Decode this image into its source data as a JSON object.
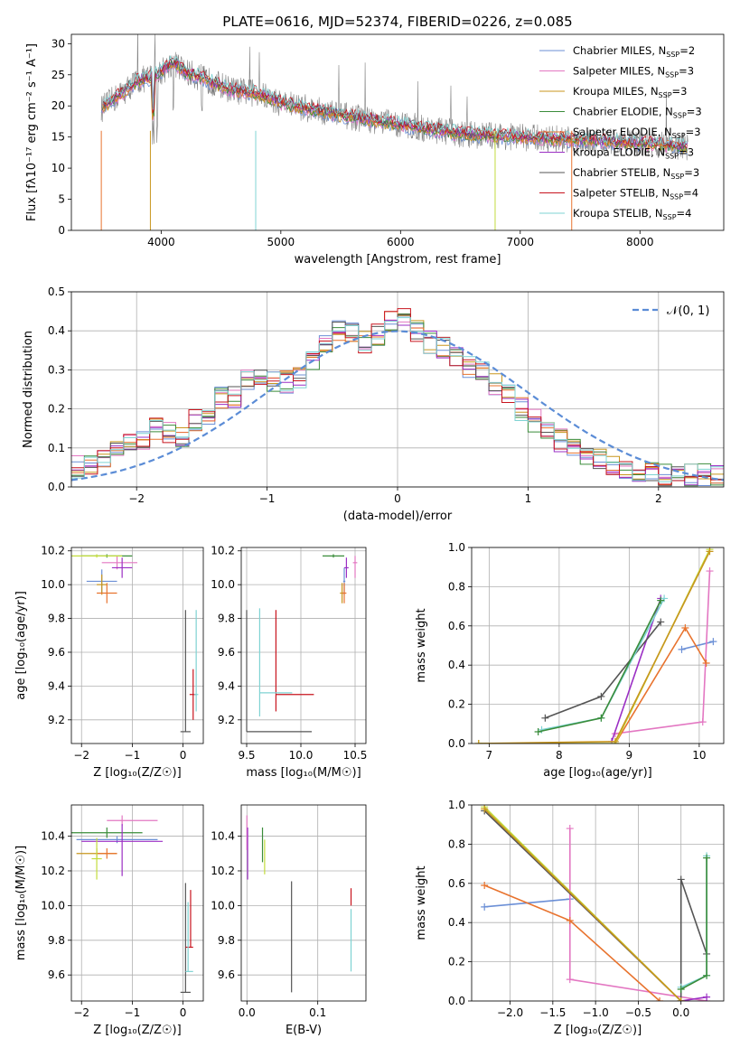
{
  "figure": {
    "title": "PLATE=0616, MJD=52374, FIBERID=0226, z=0.085",
    "models": [
      {
        "name": "Chabrier MILES",
        "nssp": "2",
        "color": "#6b8fd6"
      },
      {
        "name": "Salpeter MILES",
        "nssp": "3",
        "color": "#e377c2"
      },
      {
        "name": "Kroupa MILES",
        "nssp": "3",
        "color": "#c8961e"
      },
      {
        "name": "Chabrier ELODIE",
        "nssp": "3",
        "color": "#3a8c3a"
      },
      {
        "name": "Salpeter ELODIE",
        "nssp": "3",
        "color": "#e8732e"
      },
      {
        "name": "Kroupa ELODIE",
        "nssp": "3",
        "color": "#9b2fc4"
      },
      {
        "name": "Chabrier STELIB",
        "nssp": "3",
        "color": "#555555"
      },
      {
        "name": "Salpeter STELIB",
        "nssp": "4",
        "color": "#c8141e"
      },
      {
        "name": "Kroupa STELIB",
        "nssp": "4",
        "color": "#7fd3d3"
      }
    ],
    "extra_colors": {
      "data": "#808080",
      "yellowgreen": "#c2dc3c",
      "normal": "#5b8cd6"
    }
  },
  "chart_data": [
    {
      "type": "line",
      "id": "spectrum",
      "title": "PLATE=0616, MJD=52374, FIBERID=0226, z=0.085",
      "xlabel": "wavelength [Angstrom, rest frame]",
      "ylabel": "Flux [fλ10⁻¹⁷ erg cm⁻² s⁻¹ A⁻¹]",
      "xlim": [
        3250,
        8700
      ],
      "ylim": [
        0,
        31.5
      ],
      "xticks": [
        4000,
        5000,
        6000,
        7000,
        8000
      ],
      "yticks": [
        0,
        5,
        10,
        15,
        20,
        25,
        30
      ],
      "legend": "top-right",
      "continuum": {
        "x": [
          3500,
          3600,
          3700,
          3800,
          3900,
          4000,
          4100,
          4200,
          4400,
          4600,
          4800,
          5000,
          5500,
          6000,
          6500,
          7000,
          7500,
          8000,
          8400
        ],
        "y": [
          19.5,
          21.0,
          22.5,
          24.0,
          24.5,
          25.5,
          27.0,
          25.5,
          24.0,
          22.5,
          22.0,
          20.5,
          18.5,
          17.0,
          15.5,
          15.0,
          14.5,
          14.0,
          13.5
        ]
      },
      "notes": [
        "data spectrum (grey) with nine model fits overplotted"
      ]
    },
    {
      "type": "bar",
      "id": "residual_histogram",
      "xlabel": "(data-model)/error",
      "ylabel": "Normed distribution",
      "xlim": [
        -2.5,
        2.5
      ],
      "ylim": [
        0,
        0.5
      ],
      "xticks": [
        -2,
        -1,
        0,
        1,
        2
      ],
      "yticks": [
        0.0,
        0.1,
        0.2,
        0.3,
        0.4,
        0.5
      ],
      "legend": "top-right",
      "legend_label": "𝒩(0, 1)",
      "bin_width": 0.1,
      "histogram_values": [
        0.05,
        0.05,
        0.07,
        0.09,
        0.11,
        0.12,
        0.15,
        0.14,
        0.13,
        0.17,
        0.19,
        0.23,
        0.23,
        0.27,
        0.29,
        0.27,
        0.27,
        0.28,
        0.32,
        0.36,
        0.4,
        0.39,
        0.37,
        0.39,
        0.42,
        0.44,
        0.4,
        0.37,
        0.36,
        0.33,
        0.31,
        0.29,
        0.26,
        0.24,
        0.2,
        0.17,
        0.14,
        0.12,
        0.1,
        0.08,
        0.07,
        0.06,
        0.05,
        0.04,
        0.04,
        0.03,
        0.03,
        0.03,
        0.03,
        0.03
      ],
      "normal_curve": "N(0,1) pdf"
    },
    {
      "type": "scatter",
      "id": "age_vs_Z",
      "xlabel": "Z [log₁₀(Z/Z☉)]",
      "ylabel": "age  [log₁₀(age/yr)]",
      "xlim": [
        -2.2,
        0.4
      ],
      "ylim": [
        9.06,
        10.22
      ],
      "xticks": [
        -2,
        -1,
        0
      ],
      "yticks": [
        9.2,
        9.4,
        9.6,
        9.8,
        10.0,
        10.2
      ],
      "points": [
        {
          "model": 0,
          "x": -1.6,
          "y": 10.02,
          "xerr": [
            0.3,
            0.3
          ],
          "yerr": [
            0.07,
            0.07
          ]
        },
        {
          "model": 1,
          "x": -1.3,
          "y": 10.13,
          "xerr": [
            0.3,
            0.4
          ],
          "yerr": [
            0.04,
            0.04
          ]
        },
        {
          "model": 2,
          "x": -1.6,
          "y": 10.0,
          "xerr": [
            0.1,
            0.1
          ],
          "yerr": [
            0.06,
            0.06
          ]
        },
        {
          "model": 3,
          "x": -1.5,
          "y": 10.17,
          "xerr": [
            0.5,
            0.5
          ],
          "yerr": [
            0.01,
            0.01
          ]
        },
        {
          "model": 4,
          "x": -1.5,
          "y": 9.95,
          "xerr": [
            0.2,
            0.2
          ],
          "yerr": [
            0.06,
            0.06
          ]
        },
        {
          "model": 5,
          "x": -1.2,
          "y": 10.1,
          "xerr": [
            0.2,
            0.2
          ],
          "yerr": [
            0.06,
            0.06
          ]
        },
        {
          "model": 6,
          "x": 0.05,
          "y": 9.13,
          "xerr": [
            0.1,
            0.1
          ],
          "yerr": [
            0.0,
            0.72
          ]
        },
        {
          "model": 7,
          "x": 0.2,
          "y": 9.35,
          "xerr": [
            0.07,
            0.07
          ],
          "yerr": [
            0.15,
            0.15
          ]
        },
        {
          "model": 8,
          "x": 0.26,
          "y": 9.35,
          "xerr": [
            0.04,
            0.04
          ],
          "yerr": [
            0.1,
            0.5
          ]
        },
        {
          "model": -1,
          "x": -1.7,
          "y": 10.17,
          "xerr": [
            0.5,
            0.5
          ],
          "yerr": [
            0.01,
            0.01
          ]
        }
      ]
    },
    {
      "type": "scatter",
      "id": "age_vs_mass",
      "xlabel": "mass [log₁₀(M/M☉)]",
      "ylabel": "",
      "xlim": [
        9.45,
        10.6
      ],
      "ylim": [
        9.06,
        10.22
      ],
      "xticks": [
        9.5,
        10.0,
        10.5
      ],
      "yticks": [
        9.2,
        9.4,
        9.6,
        9.8,
        10.0,
        10.2
      ],
      "points": [
        {
          "model": 0,
          "x": 10.4,
          "y": 10.02,
          "xerr": [
            0.01,
            0.01
          ],
          "yerr": [
            0.08,
            0.08
          ]
        },
        {
          "model": 1,
          "x": 10.5,
          "y": 10.13,
          "xerr": [
            0.02,
            0.02
          ],
          "yerr": [
            0.09,
            0.04
          ]
        },
        {
          "model": 2,
          "x": 10.38,
          "y": 9.95,
          "xerr": [
            0.02,
            0.02
          ],
          "yerr": [
            0.06,
            0.06
          ]
        },
        {
          "model": 3,
          "x": 10.3,
          "y": 10.17,
          "xerr": [
            0.1,
            0.1
          ],
          "yerr": [
            0.01,
            0.01
          ]
        },
        {
          "model": 4,
          "x": 10.4,
          "y": 9.95,
          "xerr": [
            0.02,
            0.02
          ],
          "yerr": [
            0.06,
            0.06
          ]
        },
        {
          "model": 5,
          "x": 10.42,
          "y": 10.1,
          "xerr": [
            0.02,
            0.02
          ],
          "yerr": [
            0.06,
            0.06
          ]
        },
        {
          "model": 6,
          "x": 9.5,
          "y": 9.13,
          "xerr": [
            0.0,
            0.6
          ],
          "yerr": [
            0.0,
            0.72
          ]
        },
        {
          "model": 7,
          "x": 9.77,
          "y": 9.35,
          "xerr": [
            0.0,
            0.35
          ],
          "yerr": [
            0.1,
            0.5
          ]
        },
        {
          "model": 8,
          "x": 9.62,
          "y": 9.36,
          "xerr": [
            0.0,
            0.3
          ],
          "yerr": [
            0.14,
            0.5
          ]
        }
      ]
    },
    {
      "type": "line",
      "id": "mass_weight_vs_age",
      "xlabel": "age  [log₁₀(age/yr)]",
      "ylabel": "mass weight",
      "xlim": [
        6.75,
        10.35
      ],
      "ylim": [
        0,
        1
      ],
      "xticks": [
        7,
        8,
        9,
        10
      ],
      "yticks": [
        0.0,
        0.2,
        0.4,
        0.6,
        0.8,
        1.0
      ],
      "series": [
        {
          "model": 0,
          "x": [
            9.75,
            10.2
          ],
          "y": [
            0.48,
            0.52
          ]
        },
        {
          "model": 1,
          "x": [
            8.8,
            10.05,
            10.15
          ],
          "y": [
            0.05,
            0.11,
            0.88
          ]
        },
        {
          "model": 4,
          "x": [
            8.8,
            9.8,
            10.1
          ],
          "y": [
            0.0,
            0.59,
            0.41
          ]
        },
        {
          "model": 5,
          "x": [
            8.75,
            9.45
          ],
          "y": [
            0.01,
            0.74
          ]
        },
        {
          "model": 6,
          "x": [
            7.8,
            8.6,
            9.45
          ],
          "y": [
            0.13,
            0.24,
            0.62
          ]
        },
        {
          "model": 8,
          "x": [
            7.75,
            8.6,
            9.5
          ],
          "y": [
            0.07,
            0.13,
            0.74
          ]
        },
        {
          "model": 3,
          "x": [
            7.7,
            8.6,
            9.45
          ],
          "y": [
            0.06,
            0.13,
            0.73
          ]
        },
        {
          "model": -1,
          "x": [
            6.85,
            8.8,
            10.15
          ],
          "y": [
            0.0,
            0.0,
            0.99
          ]
        },
        {
          "model": 2,
          "x": [
            6.85,
            8.8,
            10.15
          ],
          "y": [
            0.0,
            0.01,
            0.98
          ]
        }
      ]
    },
    {
      "type": "scatter",
      "id": "mass_vs_Z",
      "xlabel": "Z [log₁₀(Z/Z☉)]",
      "ylabel": "mass [log₁₀(M/M☉)]",
      "xlim": [
        -2.2,
        0.4
      ],
      "ylim": [
        9.45,
        10.58
      ],
      "xticks": [
        -2,
        -1,
        0
      ],
      "yticks": [
        9.6,
        9.8,
        10.0,
        10.2,
        10.4
      ],
      "points": [
        {
          "model": 0,
          "x": -1.3,
          "y": 10.38,
          "xerr": [
            0.8,
            0.8
          ],
          "yerr": [
            0.02,
            0.02
          ]
        },
        {
          "model": 1,
          "x": -1.2,
          "y": 10.49,
          "xerr": [
            0.3,
            0.7
          ],
          "yerr": [
            0.03,
            0.03
          ]
        },
        {
          "model": 2,
          "x": -1.7,
          "y": 10.3,
          "xerr": [
            0.4,
            0.4
          ],
          "yerr": [
            0.03,
            0.03
          ]
        },
        {
          "model": 3,
          "x": -1.5,
          "y": 10.42,
          "xerr": [
            0.7,
            0.7
          ],
          "yerr": [
            0.03,
            0.03
          ]
        },
        {
          "model": 4,
          "x": -1.5,
          "y": 10.3,
          "xerr": [
            0.2,
            0.2
          ],
          "yerr": [
            0.03,
            0.03
          ]
        },
        {
          "model": 5,
          "x": -1.2,
          "y": 10.37,
          "xerr": [
            0.8,
            0.8
          ],
          "yerr": [
            0.2,
            0.1
          ]
        },
        {
          "model": 6,
          "x": 0.05,
          "y": 9.5,
          "xerr": [
            0.1,
            0.1
          ],
          "yerr": [
            0.0,
            0.63
          ]
        },
        {
          "model": 7,
          "x": 0.15,
          "y": 9.76,
          "xerr": [
            0.1,
            0.05
          ],
          "yerr": [
            0.0,
            0.33
          ]
        },
        {
          "model": 8,
          "x": 0.1,
          "y": 9.62,
          "xerr": [
            0.05,
            0.1
          ],
          "yerr": [
            0.0,
            0.4
          ]
        },
        {
          "model": -1,
          "x": -1.7,
          "y": 10.27,
          "xerr": [
            0.1,
            0.1
          ],
          "yerr": [
            0.12,
            0.12
          ]
        }
      ]
    },
    {
      "type": "scatter",
      "id": "mass_vs_EBV",
      "xlabel": "E(B-V)",
      "ylabel": "",
      "xlim": [
        -0.008,
        0.168
      ],
      "ylim": [
        9.45,
        10.58
      ],
      "xticks": [
        0.0,
        0.1
      ],
      "yticks": [
        9.6,
        9.8,
        10.0,
        10.2,
        10.4
      ],
      "points": [
        {
          "model": 1,
          "x": 0.0,
          "y": 10.42,
          "xerr": [
            0,
            0
          ],
          "yerr": [
            0.1,
            0.1
          ]
        },
        {
          "model": 5,
          "x": 0.001,
          "y": 10.3,
          "xerr": [
            0,
            0
          ],
          "yerr": [
            0.15,
            0.15
          ]
        },
        {
          "model": 3,
          "x": 0.022,
          "y": 10.35,
          "xerr": [
            0,
            0
          ],
          "yerr": [
            0.1,
            0.1
          ]
        },
        {
          "model": -1,
          "x": 0.025,
          "y": 10.28,
          "xerr": [
            0,
            0
          ],
          "yerr": [
            0.1,
            0.1
          ]
        },
        {
          "model": 6,
          "x": 0.063,
          "y": 9.5,
          "xerr": [
            0,
            0
          ],
          "yerr": [
            0.0,
            0.64
          ]
        },
        {
          "model": 7,
          "x": 0.147,
          "y": 10.05,
          "xerr": [
            0,
            0
          ],
          "yerr": [
            0.05,
            0.05
          ]
        },
        {
          "model": 8,
          "x": 0.147,
          "y": 9.8,
          "xerr": [
            0,
            0
          ],
          "yerr": [
            0.18,
            0.18
          ]
        }
      ]
    },
    {
      "type": "line",
      "id": "mass_weight_vs_Z",
      "xlabel": "Z [log₁₀(Z/Z☉)]",
      "ylabel": "mass weight",
      "xlim": [
        -2.45,
        0.5
      ],
      "ylim": [
        0,
        1
      ],
      "xticks": [
        -2.0,
        -1.5,
        -1.0,
        -0.5,
        0.0
      ],
      "yticks": [
        0.0,
        0.2,
        0.4,
        0.6,
        0.8,
        1.0
      ],
      "series": [
        {
          "model": 0,
          "x": [
            -2.3,
            -1.3
          ],
          "y": [
            0.48,
            0.52
          ]
        },
        {
          "model": 1,
          "x": [
            -1.3,
            -1.3,
            0.3
          ],
          "y": [
            0.88,
            0.11,
            0.0
          ]
        },
        {
          "model": 4,
          "x": [
            -2.3,
            -1.3,
            -0.25
          ],
          "y": [
            0.59,
            0.41,
            0.0
          ]
        },
        {
          "model": 6,
          "x": [
            -2.3,
            0.0,
            0.0,
            0.3
          ],
          "y": [
            0.97,
            0.0,
            0.62,
            0.24
          ]
        },
        {
          "model": 5,
          "x": [
            0.0,
            0.3
          ],
          "y": [
            0.0,
            0.02
          ]
        },
        {
          "model": 8,
          "x": [
            0.0,
            0.3,
            0.3
          ],
          "y": [
            0.07,
            0.13,
            0.74
          ]
        },
        {
          "model": 3,
          "x": [
            0.0,
            0.3,
            0.3
          ],
          "y": [
            0.06,
            0.13,
            0.73
          ]
        },
        {
          "model": -1,
          "x": [
            -2.3,
            0.0
          ],
          "y": [
            0.99,
            0.0
          ]
        },
        {
          "model": 2,
          "x": [
            -2.3,
            0.0
          ],
          "y": [
            0.98,
            0.0
          ]
        }
      ]
    }
  ]
}
